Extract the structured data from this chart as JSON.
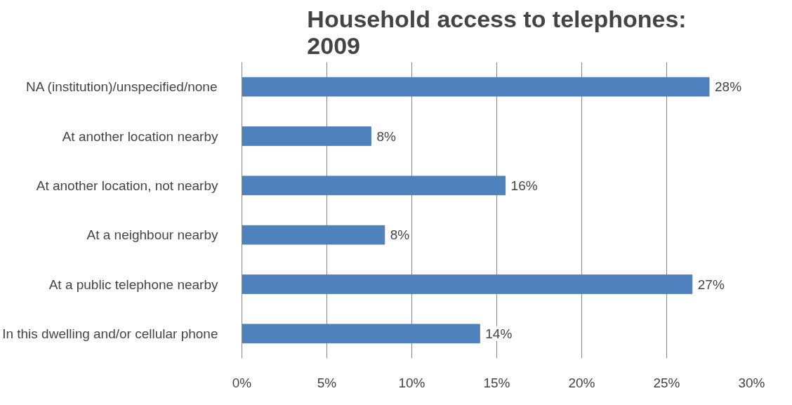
{
  "chart_data": {
    "type": "bar",
    "orientation": "horizontal",
    "title": "Household access to telephones:\n2009",
    "categories": [
      "NA (institution)/unspecified/none",
      "At another location nearby",
      "At another location, not nearby",
      "At a neighbour nearby",
      "At a public telephone nearby",
      "In this dwelling and/or cellular phone"
    ],
    "values": [
      27.5,
      7.6,
      15.5,
      8.4,
      26.5,
      14.0
    ],
    "value_labels": [
      "28%",
      "8%",
      "16%",
      "8%",
      "27%",
      "14%"
    ],
    "color": "#4f81bd",
    "xlim": [
      0,
      30
    ],
    "xticks": [
      {
        "value": 0,
        "label": "0%"
      },
      {
        "value": 5,
        "label": "5%"
      },
      {
        "value": 10,
        "label": "10%"
      },
      {
        "value": 15,
        "label": "15%"
      },
      {
        "value": 20,
        "label": "20%"
      },
      {
        "value": 25,
        "label": "25%"
      },
      {
        "value": 30,
        "label": "30%"
      }
    ],
    "grid": "x"
  }
}
